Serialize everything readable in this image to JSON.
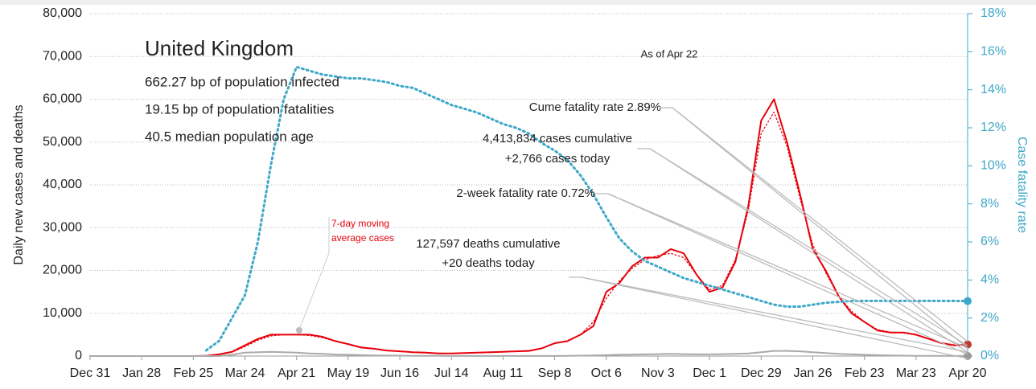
{
  "chart_data": {
    "type": "line",
    "ylabel": "Daily new cases and deaths",
    "y2label": "Case fatality rate",
    "categories": [
      "Dec 31",
      null,
      null,
      null,
      "Jan 28",
      null,
      null,
      null,
      "Feb 25",
      null,
      null,
      null,
      "Mar 24",
      null,
      null,
      null,
      "Apr 21",
      null,
      null,
      null,
      "May 19",
      null,
      null,
      null,
      "Jun 16",
      null,
      null,
      null,
      "Jul 14",
      null,
      null,
      null,
      "Aug 11",
      null,
      null,
      null,
      "Sep 8",
      null,
      null,
      null,
      "Oct 6",
      null,
      null,
      null,
      "Nov 3",
      null,
      null,
      null,
      "Dec 1",
      null,
      null,
      null,
      "Dec 29",
      null,
      null,
      null,
      "Jan 26",
      null,
      null,
      null,
      "Feb 23",
      null,
      null,
      null,
      "Mar 23",
      null,
      null,
      null,
      "Apr 20"
    ],
    "series": [
      {
        "name": "Daily cases",
        "color": "#e8000b",
        "style": "solid",
        "values": [
          0,
          0,
          0,
          0,
          0,
          0,
          0,
          0,
          0,
          50,
          400,
          1000,
          2500,
          4000,
          5000,
          5000,
          5000,
          5000,
          4500,
          3500,
          2800,
          2000,
          1700,
          1300,
          1100,
          900,
          800,
          600,
          600,
          700,
          800,
          900,
          1000,
          1100,
          1200,
          1800,
          3000,
          3500,
          5000,
          7000,
          15000,
          17000,
          21000,
          23000,
          23000,
          25000,
          24000,
          19000,
          15000,
          16000,
          22000,
          35000,
          55000,
          60000,
          50000,
          38000,
          25000,
          20000,
          14000,
          10000,
          8000,
          6000,
          5500,
          5500,
          5000,
          4000,
          3000,
          2500,
          2700
        ]
      },
      {
        "name": "7-day moving average cases",
        "color": "#e8000b",
        "style": "dotted",
        "values": [
          0,
          0,
          0,
          0,
          0,
          0,
          0,
          0,
          0,
          30,
          300,
          900,
          2200,
          3700,
          4700,
          5000,
          5000,
          4800,
          4300,
          3500,
          2800,
          2100,
          1700,
          1300,
          1100,
          900,
          800,
          650,
          620,
          700,
          800,
          900,
          1000,
          1100,
          1300,
          1800,
          2900,
          3600,
          5000,
          8000,
          13500,
          17500,
          20500,
          22500,
          23500,
          24000,
          23000,
          19000,
          15500,
          16500,
          22500,
          34000,
          52000,
          57000,
          49000,
          37000,
          26000,
          19500,
          14000,
          10500,
          8000,
          6200,
          5600,
          5400,
          4900,
          4000,
          3100,
          2600,
          2500
        ]
      },
      {
        "name": "Daily deaths",
        "color": "#aaaaaa",
        "style": "solid",
        "values": [
          0,
          0,
          0,
          0,
          0,
          0,
          0,
          0,
          0,
          0,
          0,
          300,
          800,
          900,
          1000,
          900,
          800,
          600,
          500,
          350,
          300,
          200,
          150,
          120,
          100,
          60,
          40,
          30,
          20,
          20,
          20,
          20,
          15,
          15,
          20,
          20,
          25,
          30,
          100,
          150,
          200,
          300,
          350,
          400,
          450,
          500,
          450,
          400,
          400,
          450,
          500,
          600,
          900,
          1200,
          1200,
          1100,
          900,
          700,
          500,
          400,
          300,
          200,
          150,
          100,
          60,
          40,
          30,
          25,
          20
        ]
      },
      {
        "name": "Case fatality rate",
        "color": "#3ea8c8",
        "style": "dotted",
        "axis": "y2",
        "values": [
          null,
          null,
          null,
          null,
          null,
          null,
          null,
          null,
          null,
          0.3,
          0.8,
          2,
          3.2,
          6,
          10,
          13.5,
          15.2,
          15,
          14.8,
          14.7,
          14.6,
          14.6,
          14.5,
          14.4,
          14.2,
          14.1,
          13.8,
          13.5,
          13.2,
          13,
          12.8,
          12.5,
          12.2,
          12,
          11.7,
          11.2,
          10.8,
          10.3,
          9.5,
          8.5,
          7.3,
          6.2,
          5.5,
          5,
          4.7,
          4.4,
          4.1,
          3.9,
          3.7,
          3.5,
          3.3,
          3.1,
          2.9,
          2.7,
          2.6,
          2.6,
          2.7,
          2.8,
          2.85,
          2.9,
          2.9,
          2.9,
          2.9,
          2.9,
          2.9,
          2.9,
          2.9,
          2.9,
          2.89
        ]
      }
    ],
    "ylim": [
      0,
      80000
    ],
    "yticks": [
      0,
      {
        "value": 10000,
        "label": "10,000"
      },
      {
        "value": 20000,
        "label": "20,000"
      },
      {
        "value": 30000,
        "label": "30,000"
      },
      {
        "value": 40000,
        "label": "40,000"
      },
      {
        "value": 50000,
        "label": "50,000"
      },
      {
        "value": 60000,
        "label": "60,000"
      },
      {
        "value": 70000,
        "label": "70,000"
      },
      {
        "value": 80000,
        "label": "80,000"
      }
    ],
    "y2lim": [
      0,
      18
    ],
    "y2ticks": [
      {
        "value": 0,
        "label": "0%"
      },
      {
        "value": 2,
        "label": "2%"
      },
      {
        "value": 4,
        "label": "4%"
      },
      {
        "value": 6,
        "label": "6%"
      },
      {
        "value": 8,
        "label": "8%"
      },
      {
        "value": 10,
        "label": "10%"
      },
      {
        "value": 12,
        "label": "12%"
      },
      {
        "value": 14,
        "label": "14%"
      },
      {
        "value": 16,
        "label": "16%"
      },
      {
        "value": 18,
        "label": "18%"
      }
    ],
    "grid": true,
    "title": "United Kingdom",
    "stats": [
      "662.27 bp of population infected",
      "19.15 bp of population fatalities",
      "40.5 median population age"
    ],
    "annotations": [
      "As of Apr 22",
      "Cume fatality rate 2.89%",
      "4,413,834 cases cumulative",
      "+2,766 cases today",
      "2-week fatality rate 0.72%",
      "127,597 deaths cumulative",
      "+20 deaths today",
      "7-day moving",
      "average cases"
    ]
  }
}
